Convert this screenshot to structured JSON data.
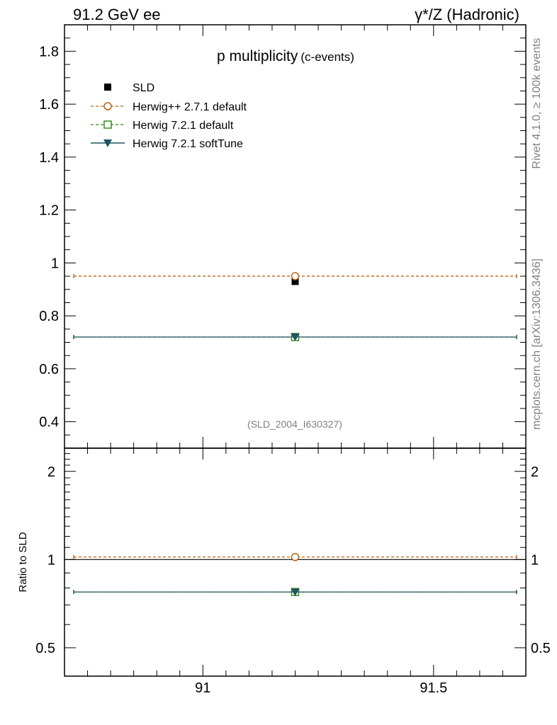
{
  "header": {
    "left": "91.2 GeV ee",
    "right": "γ*/Z (Hadronic)"
  },
  "side_labels": {
    "rivet": "Rivet 4.1.0, ≥ 100k events",
    "mcplots": "mcplots.cern.ch [arXiv:1306.3436]"
  },
  "chart_data": {
    "type": "scatter",
    "title": "p multiplicity",
    "subtitle": "(c-events)",
    "analysis_label": "(SLD_2004_I630327)",
    "x": [
      91.2
    ],
    "x_range": [
      90.7,
      91.7
    ],
    "x_ticks": [
      91,
      91.5
    ],
    "x_tick_labels": [
      "91",
      "91.5"
    ],
    "main_ylim": [
      0.3,
      1.9
    ],
    "main_y_ticks": [
      0.4,
      0.6,
      0.8,
      1,
      1.2,
      1.4,
      1.6,
      1.8
    ],
    "main_y_tick_labels": [
      "0.4",
      "0.6",
      "0.8",
      "1",
      "1.2",
      "1.4",
      "1.6",
      "1.8"
    ],
    "ratio_ylabel": "Ratio to SLD",
    "ratio_ylim": [
      0.4,
      2.4
    ],
    "ratio_y_ticks": [
      0.5,
      1,
      2
    ],
    "ratio_y_tick_labels": [
      "0.5",
      "1",
      "2"
    ],
    "series": [
      {
        "name": "SLD",
        "key": "data",
        "values": [
          0.93
        ],
        "ratio": [
          1.0
        ],
        "color": "#000000",
        "marker": "square-filled",
        "line": "none"
      },
      {
        "name": "Herwig++ 2.7.1 default",
        "key": "hpp",
        "values": [
          0.95
        ],
        "ratio": [
          1.02
        ],
        "color": "#b8610f",
        "marker": "circle-open",
        "line": "dashed"
      },
      {
        "name": "Herwig 7.2.1 default",
        "key": "h7d",
        "values": [
          0.72
        ],
        "ratio": [
          0.775
        ],
        "color": "#3a8a1c",
        "marker": "square-open",
        "line": "dashed"
      },
      {
        "name": "Herwig 7.2.1 softTune",
        "key": "h7s",
        "values": [
          0.72
        ],
        "ratio": [
          0.775
        ],
        "color": "#1f5560",
        "marker": "triangle-down-filled",
        "line": "solid"
      }
    ]
  }
}
